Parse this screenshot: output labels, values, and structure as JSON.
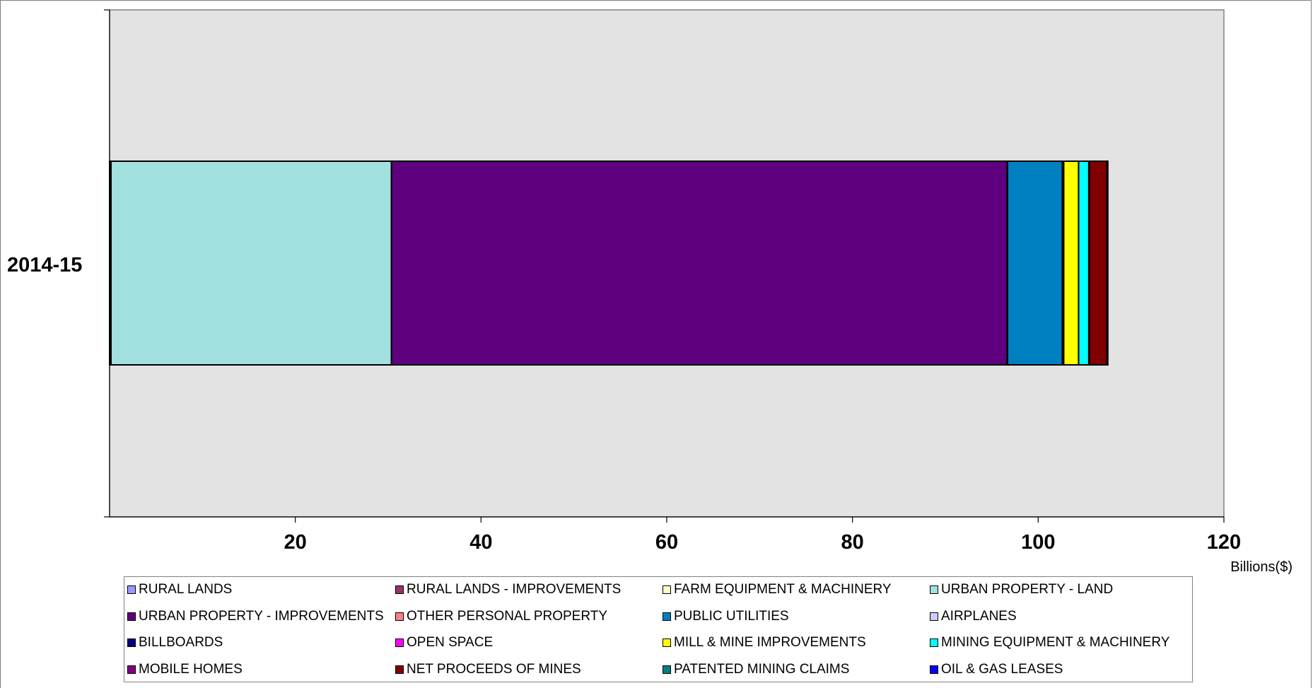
{
  "chart_data": {
    "type": "bar",
    "orientation": "horizontal",
    "stacked": true,
    "categories": [
      "2014-15"
    ],
    "xlim": [
      0,
      120
    ],
    "x_ticks": [
      20,
      40,
      60,
      80,
      100,
      120
    ],
    "xlabel": "Billions($)",
    "ylabel": "",
    "title": "",
    "grid": false,
    "plot_background": "#e3e3e3",
    "legend_position": "bottom",
    "series": [
      {
        "name": "RURAL LANDS",
        "color": "#9999ff",
        "values": [
          0.05
        ]
      },
      {
        "name": "RURAL LANDS - IMPROVEMENTS",
        "color": "#993366",
        "values": [
          0.05
        ]
      },
      {
        "name": "FARM EQUIPMENT & MACHINERY",
        "color": "#ffffcc",
        "values": [
          0.05
        ]
      },
      {
        "name": "URBAN PROPERTY - LAND",
        "color": "#a3e0e0",
        "values": [
          30.2
        ]
      },
      {
        "name": "URBAN PROPERTY - IMPROVEMENTS",
        "color": "#5f007f",
        "values": [
          66.3
        ]
      },
      {
        "name": "OTHER PERSONAL PROPERTY",
        "color": "#ff8080",
        "values": [
          0.05
        ]
      },
      {
        "name": "PUBLIC UTILITIES",
        "color": "#0080c0",
        "values": [
          5.9
        ]
      },
      {
        "name": "AIRPLANES",
        "color": "#ccccff",
        "values": [
          0.05
        ]
      },
      {
        "name": "BILLBOARDS",
        "color": "#000080",
        "values": [
          0.05
        ]
      },
      {
        "name": "OPEN SPACE",
        "color": "#ff00ff",
        "values": [
          0.05
        ]
      },
      {
        "name": "MILL & MINE IMPROVEMENTS",
        "color": "#ffff00",
        "values": [
          1.6
        ]
      },
      {
        "name": "MINING EQUIPMENT & MACHINERY",
        "color": "#00ffff",
        "values": [
          1.1
        ]
      },
      {
        "name": "MOBILE HOMES",
        "color": "#800080",
        "values": [
          0.05
        ]
      },
      {
        "name": "NET PROCEEDS OF MINES",
        "color": "#800000",
        "values": [
          1.9
        ]
      },
      {
        "name": "PATENTED MINING CLAIMS",
        "color": "#008080",
        "values": [
          0.05
        ]
      },
      {
        "name": "OIL & GAS LEASES",
        "color": "#0000ff",
        "values": [
          0.05
        ]
      }
    ]
  }
}
